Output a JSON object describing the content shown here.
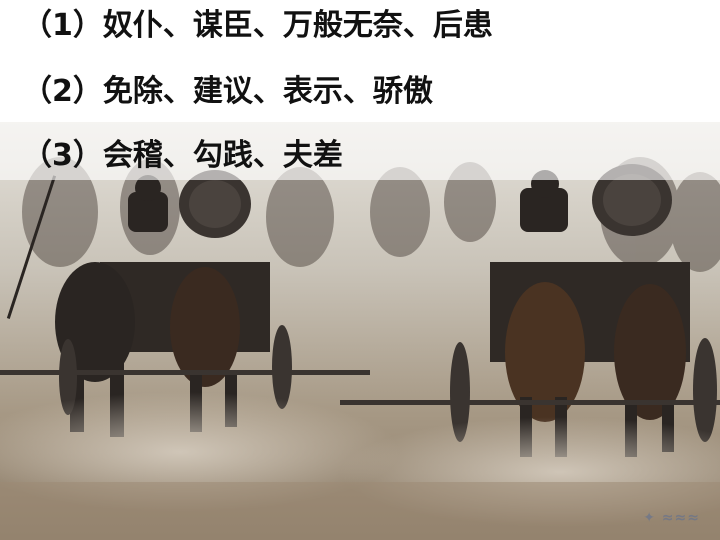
{
  "lines": [
    "（1）奴仆、谋臣、万般无奈、后患",
    "（2）免除、建议、表示、骄傲",
    "（3）会稽、勾践、夫差"
  ],
  "colors": {
    "text": "#111111",
    "sky": "#d9d6cf",
    "dust": "#a89a86",
    "dark": "#2a2522"
  }
}
